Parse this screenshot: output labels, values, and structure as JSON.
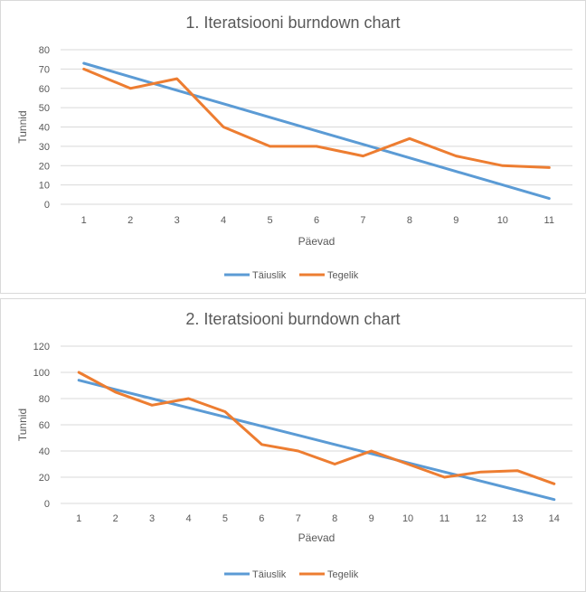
{
  "chart_data": [
    {
      "type": "line",
      "title": "1. Iteratsiooni burndown chart",
      "xlabel": "Päevad",
      "ylabel": "Tunnid",
      "categories": [
        "1",
        "2",
        "3",
        "4",
        "5",
        "6",
        "7",
        "8",
        "9",
        "10",
        "11"
      ],
      "ylim": [
        0,
        80
      ],
      "yticks": [
        0,
        10,
        20,
        30,
        40,
        50,
        60,
        70,
        80
      ],
      "grid": true,
      "legend_position": "bottom",
      "series": [
        {
          "name": "Täiuslik",
          "color": "#5b9bd5",
          "values": [
            73,
            66,
            59,
            52,
            45,
            38,
            31,
            24,
            17,
            10,
            3
          ]
        },
        {
          "name": "Tegelik",
          "color": "#ed7d31",
          "values": [
            70,
            60,
            65,
            40,
            30,
            30,
            25,
            34,
            25,
            20,
            19
          ]
        }
      ]
    },
    {
      "type": "line",
      "title": "2. Iteratsiooni burndown chart",
      "xlabel": "Päevad",
      "ylabel": "Tunnid",
      "categories": [
        "1",
        "2",
        "3",
        "4",
        "5",
        "6",
        "7",
        "8",
        "9",
        "10",
        "11",
        "12",
        "13",
        "14"
      ],
      "ylim": [
        0,
        120
      ],
      "yticks": [
        0,
        20,
        40,
        60,
        80,
        100,
        120
      ],
      "grid": true,
      "legend_position": "bottom",
      "series": [
        {
          "name": "Täiuslik",
          "color": "#5b9bd5",
          "values": [
            94,
            87,
            80,
            73,
            66,
            59,
            52,
            45,
            38,
            31,
            24,
            17,
            10,
            3
          ]
        },
        {
          "name": "Tegelik",
          "color": "#ed7d31",
          "values": [
            100,
            85,
            75,
            80,
            70,
            45,
            40,
            30,
            40,
            30,
            20,
            24,
            25,
            15
          ]
        }
      ]
    }
  ]
}
